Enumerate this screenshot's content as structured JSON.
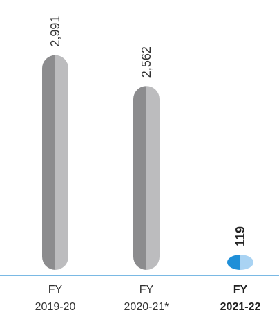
{
  "chart_data": {
    "type": "bar",
    "categories": [
      {
        "line1": "FY",
        "line2": "2019-20",
        "highlight": false
      },
      {
        "line1": "FY",
        "line2": "2020-21*",
        "highlight": false
      },
      {
        "line1": "FY",
        "line2": "2021-22",
        "highlight": true
      }
    ],
    "values": [
      2991,
      2562,
      119
    ],
    "value_labels": [
      "2,991",
      "2,562",
      "119"
    ],
    "ylim": [
      0,
      3200
    ],
    "grid": false,
    "colors": {
      "bar_left": "#8c8c8e",
      "bar_right": "#bcbcbe",
      "highlight_left": "#1f8fd8",
      "highlight_right": "#a9d3f3",
      "axis": "#2a8fd4"
    }
  }
}
